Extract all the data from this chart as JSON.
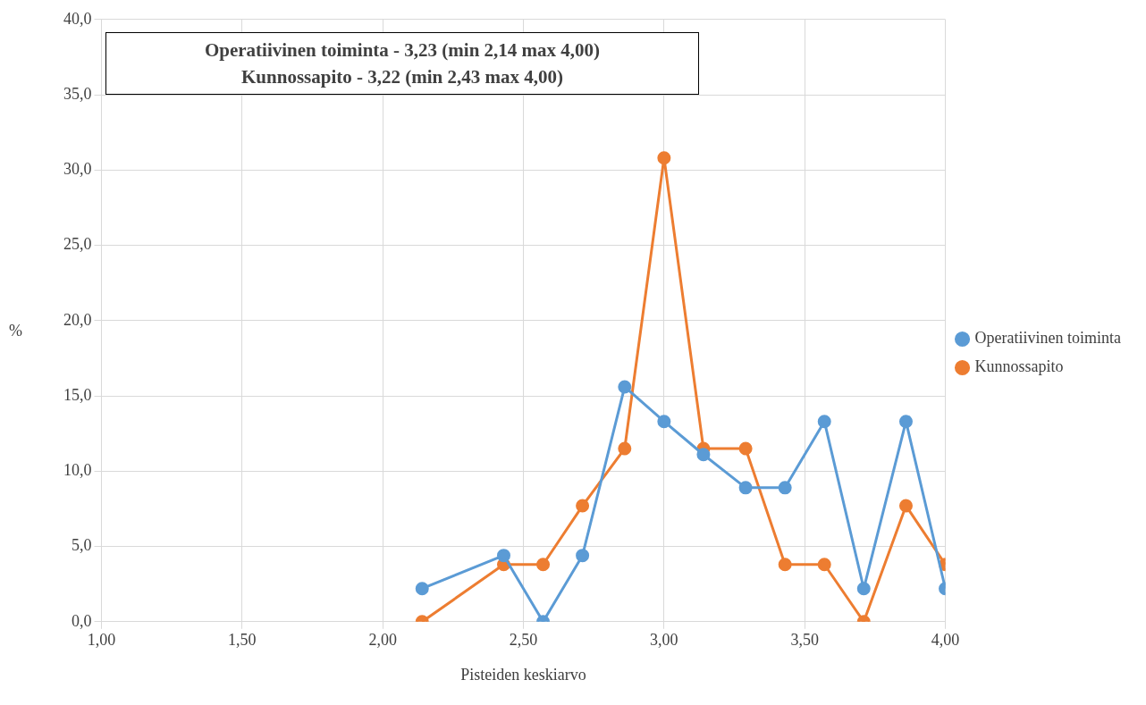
{
  "chart_data": {
    "type": "line",
    "xlabel": "Pisteiden keskiarvo",
    "ylabel": "%",
    "annotations": [
      "Operatiivinen toiminta - 3,23 (min 2,14 max 4,00)",
      "Kunnossapito - 3,22 (min 2,43 max 4,00)"
    ],
    "x": [
      2.14,
      2.43,
      2.57,
      2.71,
      2.86,
      3.0,
      3.14,
      3.29,
      3.43,
      3.57,
      3.71,
      3.86,
      4.0
    ],
    "series": [
      {
        "name": "Operatiivinen toiminta",
        "color": "#5b9bd5",
        "values": [
          2.2,
          4.4,
          0.0,
          4.4,
          15.6,
          13.3,
          11.1,
          8.9,
          8.9,
          13.3,
          2.2,
          13.3,
          2.2
        ]
      },
      {
        "name": "Kunnossapito",
        "color": "#ed7d31",
        "values": [
          0.0,
          3.8,
          3.8,
          7.7,
          11.5,
          30.8,
          11.5,
          11.5,
          3.8,
          3.8,
          0.0,
          7.7,
          3.8
        ]
      }
    ],
    "xlim": [
      1.0,
      4.0
    ],
    "xticks": [
      {
        "value": 1.0,
        "label": "1,00"
      },
      {
        "value": 1.5,
        "label": "1,50"
      },
      {
        "value": 2.0,
        "label": "2,00"
      },
      {
        "value": 2.5,
        "label": "2,50"
      },
      {
        "value": 3.0,
        "label": "3,00"
      },
      {
        "value": 3.5,
        "label": "3,50"
      },
      {
        "value": 4.0,
        "label": "4,00"
      }
    ],
    "ylim": [
      0,
      40
    ],
    "yticks": [
      {
        "value": 0,
        "label": "0,0"
      },
      {
        "value": 5,
        "label": "5,0"
      },
      {
        "value": 10,
        "label": "10,0"
      },
      {
        "value": 15,
        "label": "15,0"
      },
      {
        "value": 20,
        "label": "20,0"
      },
      {
        "value": 25,
        "label": "25,0"
      },
      {
        "value": 30,
        "label": "30,0"
      },
      {
        "value": 35,
        "label": "35,0"
      },
      {
        "value": 40,
        "label": "40,0"
      }
    ],
    "grid": true,
    "legend": "right",
    "marker": "circle",
    "line_style": "solid"
  }
}
